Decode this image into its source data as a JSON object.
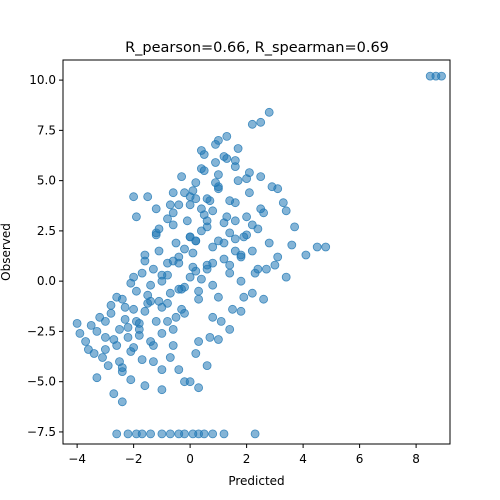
{
  "chart_data": {
    "type": "scatter",
    "title": "R_pearson=0.66, R_spearman=0.69",
    "xlabel": "Predicted",
    "ylabel": "Observed",
    "xlim": [
      -4.5,
      9.2
    ],
    "ylim": [
      -8.1,
      11.0
    ],
    "x_ticks": [
      -4,
      -2,
      0,
      2,
      4,
      6,
      8
    ],
    "x_tick_labels": [
      "−4",
      "−2",
      "0",
      "2",
      "4",
      "6",
      "8"
    ],
    "y_ticks": [
      -7.5,
      -5.0,
      -2.5,
      0.0,
      2.5,
      5.0,
      7.5,
      10.0
    ],
    "y_tick_labels": [
      "−7.5",
      "−5.0",
      "−2.5",
      "0.0",
      "2.5",
      "5.0",
      "7.5",
      "10.0"
    ],
    "grid": false,
    "marker_color": "#1f77b4",
    "marker_alpha": 0.55,
    "series": [
      {
        "x": [
          -4.0,
          -3.9,
          -3.7,
          -3.5,
          -3.4,
          -3.3,
          -3.1,
          -3.0,
          -2.9,
          -2.8,
          -2.6,
          -2.5,
          -2.4,
          -2.3,
          -2.2,
          -3.2,
          -3.0,
          -2.8,
          -2.7,
          -2.5,
          -2.4,
          -2.2,
          -2.1,
          -2.0,
          -1.9,
          -1.8,
          -1.7,
          -1.5,
          -1.4,
          -1.2,
          -2.6,
          -2.4,
          -2.3,
          -2.1,
          -2.0,
          -1.8,
          -1.7,
          -1.6,
          -1.4,
          -1.3,
          -1.1,
          -1.0,
          -0.8,
          -0.7,
          -0.5,
          -2.0,
          -1.8,
          -1.6,
          -1.5,
          -1.3,
          -1.1,
          -1.0,
          -0.8,
          -0.6,
          -0.5,
          -0.3,
          -0.2,
          0.0,
          0.1,
          0.3,
          -1.6,
          -1.4,
          -1.2,
          -1.0,
          -0.8,
          -0.6,
          -0.4,
          -0.3,
          -0.1,
          0.1,
          0.3,
          0.5,
          0.6,
          0.8,
          1.0,
          -1.2,
          -1.0,
          -0.8,
          -0.6,
          -0.4,
          -0.2,
          0.0,
          0.2,
          0.4,
          0.6,
          0.8,
          1.0,
          1.2,
          1.4,
          1.6,
          -0.8,
          -0.6,
          -0.4,
          -0.2,
          0.0,
          0.2,
          0.4,
          0.6,
          0.8,
          1.0,
          1.2,
          1.4,
          1.6,
          1.8,
          2.0,
          -0.4,
          -0.2,
          0.0,
          0.2,
          0.4,
          0.6,
          0.8,
          1.0,
          1.2,
          1.4,
          1.6,
          1.8,
          2.0,
          2.2,
          2.4,
          0.0,
          0.2,
          0.4,
          0.6,
          0.8,
          1.0,
          1.2,
          1.4,
          1.6,
          1.8,
          2.0,
          2.2,
          2.4,
          2.6,
          2.8,
          0.4,
          0.7,
          1.0,
          1.3,
          1.6,
          1.9,
          2.2,
          2.5,
          2.8,
          3.1,
          3.4,
          3.6,
          -3.6,
          -3.3,
          -3.0,
          -2.7,
          -2.4,
          -2.1,
          -1.9,
          -1.6,
          -1.3,
          -1.0,
          -0.7,
          -0.4,
          0.0,
          0.3,
          -1.9,
          -1.5,
          -1.1,
          -0.7,
          -0.3,
          0.1,
          0.5,
          0.9,
          1.3,
          1.7,
          2.1,
          2.5,
          -1.0,
          -0.6,
          -0.2,
          0.2,
          0.6,
          1.0,
          1.4,
          1.8,
          2.2,
          2.6,
          3.0,
          3.4,
          0.5,
          0.9,
          1.3,
          1.7,
          2.1,
          2.5,
          2.9,
          3.3,
          3.7,
          4.1,
          4.5,
          4.8,
          0.3,
          0.7,
          1.1,
          1.5,
          1.9,
          2.3,
          2.7,
          3.1,
          -2.0,
          -1.2,
          -0.6,
          0.2,
          0.9,
          1.6,
          -2.6,
          -2.2,
          -1.9,
          -1.7,
          -1.4,
          -1.0,
          -0.7,
          -0.4,
          -0.2,
          0.1,
          0.3,
          0.5,
          0.8,
          1.2,
          2.3,
          8.5,
          8.7,
          8.9
        ],
        "y": [
          -2.1,
          -2.6,
          -3.0,
          -2.2,
          -3.6,
          -2.5,
          -3.8,
          -2.0,
          -4.2,
          -1.6,
          -3.2,
          -2.4,
          -4.5,
          -1.3,
          -2.8,
          -1.8,
          -3.4,
          -1.2,
          -2.9,
          -4.0,
          -0.9,
          -2.3,
          -3.5,
          -1.4,
          -0.5,
          -2.7,
          -3.9,
          -1.1,
          -0.2,
          -2.0,
          -0.8,
          -4.3,
          -1.9,
          -0.1,
          -3.3,
          -2.4,
          0.4,
          -1.5,
          -3.0,
          0.6,
          -1.0,
          -2.6,
          0.9,
          -0.6,
          -1.8,
          0.2,
          -2.1,
          1.0,
          -0.7,
          -3.2,
          1.5,
          -1.3,
          0.3,
          -2.4,
          1.9,
          -0.4,
          -1.6,
          2.2,
          0.7,
          -0.9,
          1.3,
          -1.0,
          2.4,
          0.0,
          -2.0,
          2.8,
          0.9,
          -1.4,
          3.0,
          1.4,
          -0.5,
          3.3,
          0.6,
          -1.8,
          2.0,
          2.3,
          0.3,
          -1.1,
          3.4,
          1.2,
          -0.3,
          3.8,
          2.0,
          0.1,
          4.1,
          1.7,
          -0.8,
          2.9,
          0.8,
          1.5,
          3.1,
          1.0,
          -0.4,
          4.4,
          2.2,
          0.5,
          3.6,
          2.7,
          -0.2,
          4.7,
          1.9,
          0.4,
          3.0,
          1.3,
          2.3,
          3.8,
          1.6,
          0.2,
          4.9,
          2.5,
          0.8,
          3.5,
          5.3,
          1.1,
          4.0,
          2.1,
          0.0,
          3.2,
          1.5,
          2.6,
          4.2,
          2.0,
          5.6,
          3.0,
          0.9,
          4.6,
          6.2,
          2.4,
          3.9,
          1.2,
          5.1,
          2.8,
          0.6,
          3.4,
          1.9,
          6.5,
          4.0,
          7.0,
          3.2,
          6.0,
          2.2,
          7.8,
          5.2,
          8.4,
          4.6,
          3.5,
          1.8,
          -3.4,
          -4.8,
          -2.8,
          -5.6,
          -6.0,
          -4.9,
          -2.0,
          -5.2,
          -4.0,
          -5.4,
          -3.8,
          -4.4,
          -5.0,
          -5.3,
          3.2,
          4.2,
          2.6,
          3.8,
          5.2,
          4.5,
          6.3,
          5.9,
          7.2,
          6.6,
          5.4,
          7.9,
          -4.4,
          -3.2,
          -5.0,
          -3.6,
          -4.2,
          -2.9,
          -2.4,
          -1.5,
          -0.6,
          -0.9,
          0.8,
          0.2,
          5.5,
          6.8,
          6.1,
          5.0,
          4.4,
          3.6,
          4.7,
          3.9,
          2.7,
          1.3,
          1.7,
          1.7,
          -3.0,
          -2.8,
          -2.0,
          -1.4,
          -0.8,
          0.4,
          0.6,
          1.2,
          4.2,
          3.6,
          4.4,
          4.1,
          4.9,
          5.7,
          -7.6,
          -7.6,
          -7.6,
          -7.6,
          -7.6,
          -7.6,
          -7.6,
          -7.6,
          -7.6,
          -7.6,
          -7.6,
          -7.6,
          -7.6,
          -7.6,
          -7.6,
          10.2,
          10.2,
          10.2
        ]
      }
    ]
  }
}
